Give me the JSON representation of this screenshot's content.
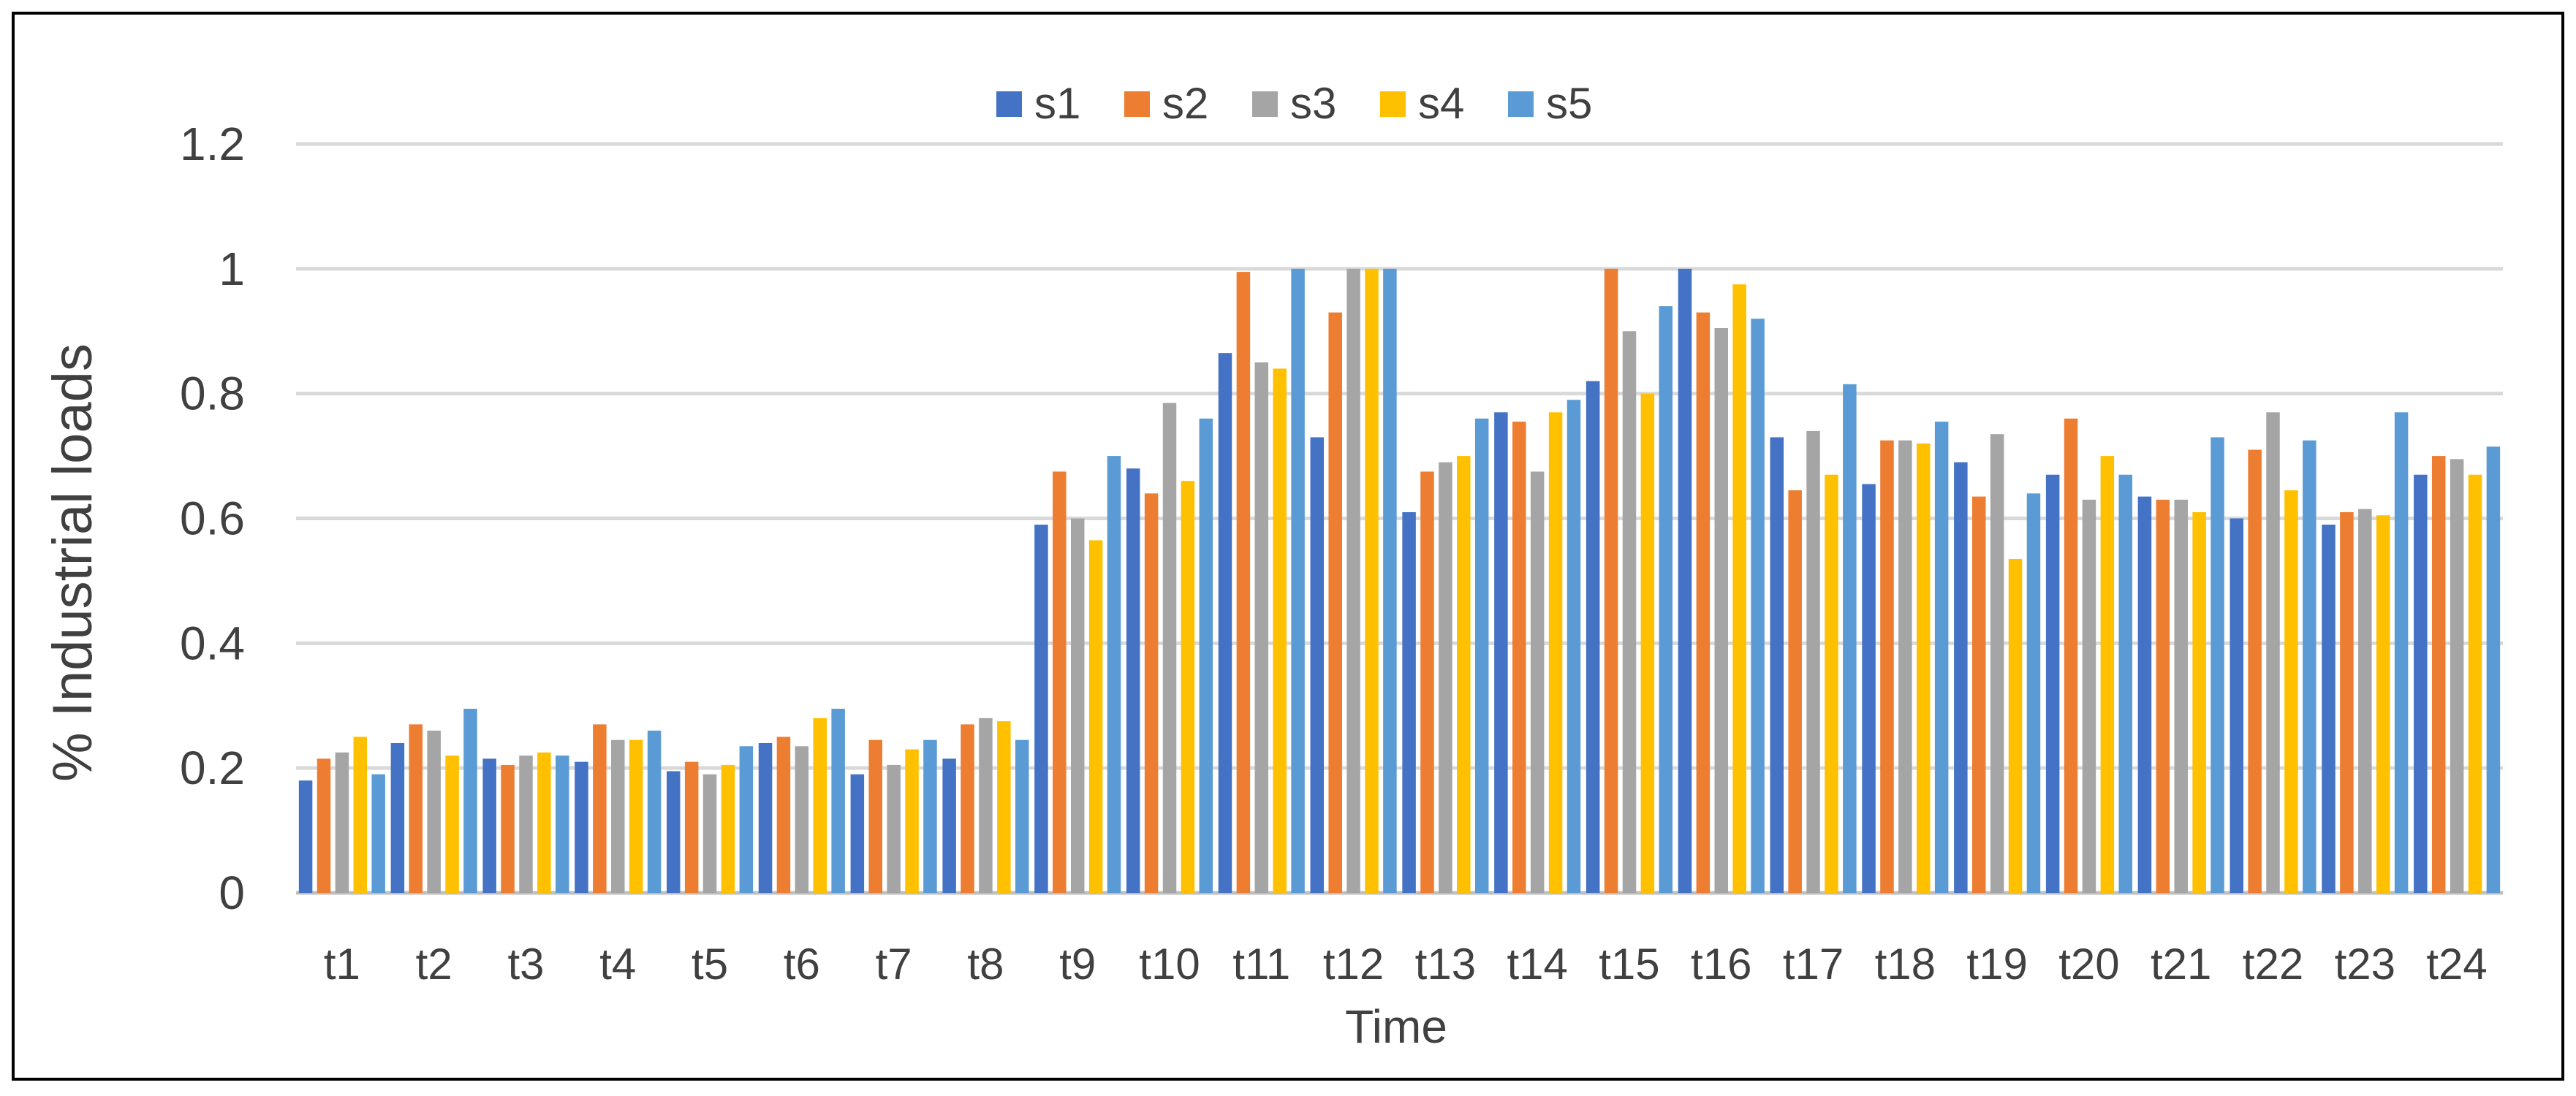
{
  "chart_data": {
    "type": "bar",
    "title": "",
    "xlabel": "Time",
    "ylabel": "% Industrial loads",
    "ylim": [
      0,
      1.2
    ],
    "yticks": [
      "0",
      "0.2",
      "0.4",
      "0.6",
      "0.8",
      "1",
      "1.2"
    ],
    "ytick_values": [
      0,
      0.2,
      0.4,
      0.6,
      0.8,
      1.0,
      1.2
    ],
    "grid": true,
    "legend_position": "top",
    "categories": [
      "t1",
      "t2",
      "t3",
      "t4",
      "t5",
      "t6",
      "t7",
      "t8",
      "t9",
      "t10",
      "t11",
      "t12",
      "t13",
      "t14",
      "t15",
      "t16",
      "t17",
      "t18",
      "t19",
      "t20",
      "t21",
      "t22",
      "t23",
      "t24"
    ],
    "series": [
      {
        "name": "s1",
        "color": "#4472C4",
        "values": [
          0.18,
          0.24,
          0.215,
          0.21,
          0.195,
          0.24,
          0.19,
          0.215,
          0.59,
          0.68,
          0.865,
          0.73,
          0.61,
          0.77,
          0.82,
          1.0,
          0.73,
          0.655,
          0.69,
          0.67,
          0.635,
          0.6,
          0.59,
          0.67
        ]
      },
      {
        "name": "s2",
        "color": "#ED7D31",
        "values": [
          0.215,
          0.27,
          0.205,
          0.27,
          0.21,
          0.25,
          0.245,
          0.27,
          0.675,
          0.64,
          0.995,
          0.93,
          0.675,
          0.755,
          1.0,
          0.93,
          0.645,
          0.725,
          0.635,
          0.76,
          0.63,
          0.71,
          0.61,
          0.7
        ]
      },
      {
        "name": "s3",
        "color": "#A5A5A5",
        "values": [
          0.225,
          0.26,
          0.22,
          0.245,
          0.19,
          0.235,
          0.205,
          0.28,
          0.6,
          0.785,
          0.85,
          1.0,
          0.69,
          0.675,
          0.9,
          0.905,
          0.74,
          0.725,
          0.735,
          0.63,
          0.63,
          0.77,
          0.615,
          0.695
        ]
      },
      {
        "name": "s4",
        "color": "#FFC000",
        "values": [
          0.25,
          0.22,
          0.225,
          0.245,
          0.205,
          0.28,
          0.23,
          0.275,
          0.565,
          0.66,
          0.84,
          1.0,
          0.7,
          0.77,
          0.8,
          0.975,
          0.67,
          0.72,
          0.535,
          0.7,
          0.61,
          0.645,
          0.605,
          0.67
        ]
      },
      {
        "name": "s5",
        "color": "#5B9BD5",
        "values": [
          0.19,
          0.295,
          0.22,
          0.26,
          0.235,
          0.295,
          0.245,
          0.245,
          0.7,
          0.76,
          1.0,
          1.0,
          0.76,
          0.79,
          0.94,
          0.92,
          0.815,
          0.755,
          0.64,
          0.67,
          0.73,
          0.725,
          0.77,
          0.715
        ]
      }
    ]
  }
}
